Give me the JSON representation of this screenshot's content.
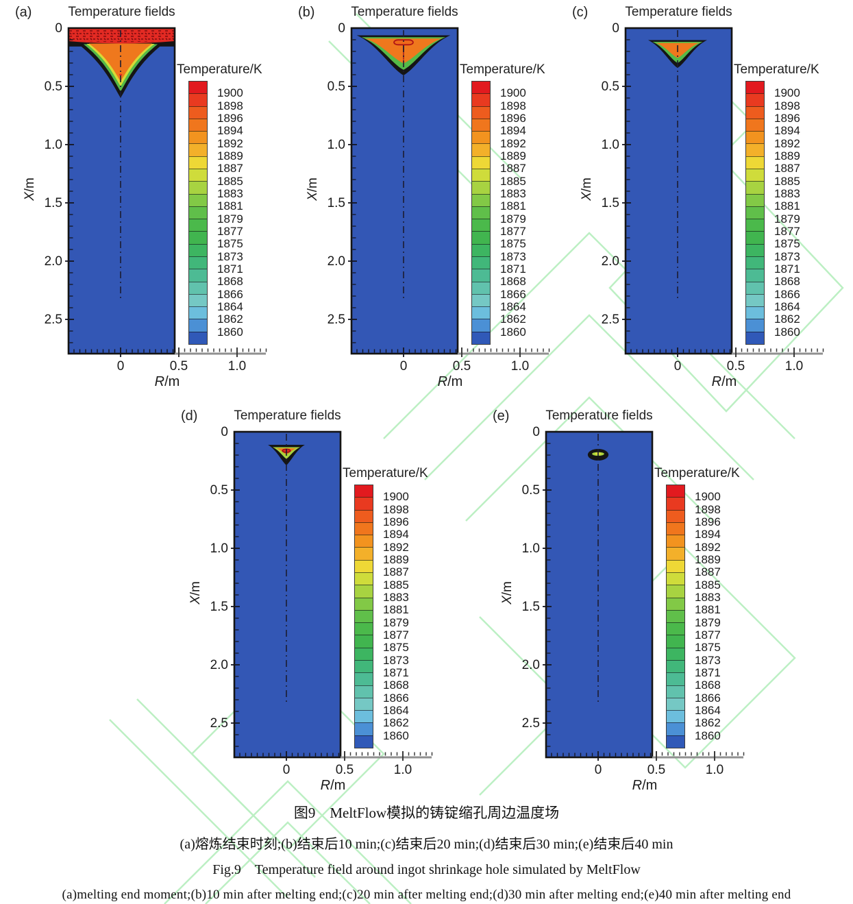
{
  "figure": {
    "caption_zh": "图9　MeltFlow模拟的铸锭缩孔周边温度场",
    "caption_list_zh": "(a)熔炼结束时刻;(b)结束后10 min;(c)结束后20 min;(d)结束后30 min;(e)结束后40 min",
    "caption_en": "Fig.9 Temperature field around ingot shrinkage hole simulated by MeltFlow",
    "caption_list_en": "(a)melting end moment;(b)10 min after melting end;(c)20 min after melting end;(d)30 min after melting end;(e)40 min after melting end"
  },
  "chart_data": {
    "type": "heatmap",
    "description": "Five axisymmetric temperature-field contour plots of an ingot at successive times after melting end; hot molten zone at top shrinks with time",
    "axes": {
      "x": {
        "var": "R",
        "unit": "/m",
        "ticks": [
          "0",
          "0.5",
          "1.0"
        ],
        "tick_values": [
          0,
          0.5,
          1.0
        ],
        "range": [
          -0.45,
          1.26
        ]
      },
      "y": {
        "var": "X",
        "unit": "/m",
        "ticks": [
          "0",
          "0.5",
          "1.0",
          "1.5",
          "2.0",
          "2.5"
        ],
        "tick_values": [
          0,
          0.5,
          1.0,
          1.5,
          2.0,
          2.5
        ],
        "range": [
          0,
          2.79
        ]
      }
    },
    "ingot_extent_m": {
      "r": [
        -0.45,
        0.465
      ],
      "x": [
        0,
        2.79
      ]
    },
    "colorbar": {
      "title": "Temperature/K",
      "levels": [
        "1900",
        "1898",
        "1896",
        "1894",
        "1892",
        "1889",
        "1887",
        "1885",
        "1883",
        "1881",
        "1879",
        "1877",
        "1875",
        "1873",
        "1871",
        "1868",
        "1866",
        "1864",
        "1862",
        "1860"
      ],
      "colors": [
        "#e21a1f",
        "#e93a20",
        "#ee5c1e",
        "#f0761d",
        "#f2931f",
        "#f3b02a",
        "#eed836",
        "#cfdc3b",
        "#a8d341",
        "#82c946",
        "#60bf4a",
        "#4bb94b",
        "#41b54f",
        "#3db561",
        "#41b77a",
        "#4dbb94",
        "#61c2ad",
        "#75c8c4",
        "#6cbedd",
        "#4b90d5",
        "#3059b8"
      ]
    },
    "style": {
      "ingot_fill": "#3357b5",
      "plot_border": "#141414",
      "centerline": "#1c1c30",
      "axis_line": "#909090",
      "tick_color": "#15151f",
      "watermark_color": "#90e69c"
    },
    "panels": [
      {
        "id": "a",
        "label": "(a)",
        "title": "Temperature fields",
        "time_zh": "熔炼结束时刻",
        "time_en": "melting end moment",
        "hot_zone": {
          "peak_level_K": 1900,
          "surface_band_depth_m": 0.15,
          "apex_depth_m": 0.58,
          "max_half_width_m": 0.36,
          "layers": [
            {
              "shape": "rectband",
              "color": "#151515",
              "bottom": 0.158
            },
            {
              "shape": "v",
              "color": "#151515",
              "top": 0.142,
              "hw": 0.357,
              "apex": 0.6,
              "curve": 0.8
            },
            {
              "shape": "v",
              "color": "#55ba48",
              "top": 0.138,
              "hw": 0.318,
              "apex": 0.545,
              "curve": 0.8
            },
            {
              "shape": "v",
              "color": "#d8da36",
              "top": 0.135,
              "hw": 0.292,
              "apex": 0.5,
              "curve": 0.8
            },
            {
              "shape": "v",
              "color": "#ef781d",
              "top": 0.132,
              "hw": 0.272,
              "apex": 0.458,
              "curve": 0.8
            },
            {
              "shape": "band",
              "color": "#e32a23",
              "bottom": 0.112,
              "dip": 0.02
            },
            {
              "shape": "band",
              "color": "pattern",
              "bottom": 0.105,
              "dip": 0.015
            },
            {
              "shape": "ellipse",
              "color": "#e32a23",
              "cy": 0.4,
              "rx": 0.013,
              "ry": 0.008
            }
          ]
        }
      },
      {
        "id": "b",
        "label": "(b)",
        "title": "Temperature fields",
        "time_zh": "结束后10 min",
        "time_en": "10 min after melting end",
        "hot_zone": {
          "peak_level_K": 1900,
          "surface_band_depth_m": 0.06,
          "apex_depth_m": 0.4,
          "max_half_width_m": 0.4,
          "layers": [
            {
              "shape": "v",
              "color": "#151515",
              "top": 0.062,
              "hw": 0.402,
              "apex": 0.405,
              "curve": 0.3
            },
            {
              "shape": "v",
              "color": "#55ba48",
              "top": 0.078,
              "hw": 0.36,
              "apex": 0.358,
              "curve": 0.3
            },
            {
              "shape": "v",
              "color": "#ef781d",
              "top": 0.09,
              "hw": 0.33,
              "apex": 0.302,
              "curve": 0.3
            },
            {
              "shape": "rrect",
              "color": "#ee6a1a",
              "stroke": "#b01515",
              "cy": 0.122,
              "hw": 0.082,
              "hh": 0.021
            },
            {
              "shape": "vline",
              "color": "#b8341c",
              "y1": 0.145,
              "y2": 0.272
            }
          ]
        }
      },
      {
        "id": "c",
        "label": "(c)",
        "title": "Temperature fields",
        "time_zh": "结束后20 min",
        "time_en": "20 min after melting end",
        "hot_zone": {
          "peak_level_K": 1898,
          "surface_band_depth_m": 0.1,
          "apex_depth_m": 0.34,
          "max_half_width_m": 0.25,
          "layers": [
            {
              "shape": "v",
              "color": "#151515",
              "top": 0.103,
              "hw": 0.253,
              "apex": 0.342,
              "curve": 0.32
            },
            {
              "shape": "v",
              "color": "#55ba48",
              "top": 0.118,
              "hw": 0.216,
              "apex": 0.3,
              "curve": 0.32
            },
            {
              "shape": "v",
              "color": "#ef781d",
              "top": 0.128,
              "hw": 0.186,
              "apex": 0.256,
              "curve": 0.32
            }
          ]
        }
      },
      {
        "id": "d",
        "label": "(d)",
        "title": "Temperature fields",
        "time_zh": "结束后30 min",
        "time_en": "30 min after melting end",
        "hot_zone": {
          "peak_level_K": 1898,
          "surface_band_depth_m": 0.11,
          "apex_depth_m": 0.29,
          "max_half_width_m": 0.16,
          "layers": [
            {
              "shape": "v",
              "color": "#151515",
              "top": 0.112,
              "hw": 0.158,
              "apex": 0.288,
              "curve": 0.42
            },
            {
              "shape": "v",
              "color": "#a9d33e",
              "top": 0.132,
              "hw": 0.118,
              "apex": 0.232,
              "curve": 0.42
            },
            {
              "shape": "v",
              "color": "#ef781d",
              "top": 0.142,
              "hw": 0.088,
              "apex": 0.196,
              "curve": 0.42
            },
            {
              "shape": "ellipse",
              "color": "#e32a23",
              "stroke": "#9c1016",
              "cy": 0.163,
              "rx": 0.034,
              "ry": 0.014
            }
          ]
        }
      },
      {
        "id": "e",
        "label": "(e)",
        "title": "Temperature fields",
        "time_zh": "结束后40 min",
        "time_en": "40 min after melting end",
        "hot_zone": {
          "peak_level_K": 1889,
          "surface_band_depth_m": 0.15,
          "apex_depth_m": 0.25,
          "max_half_width_m": 0.09,
          "layers": [
            {
              "shape": "ellipse",
              "color": "#151515",
              "cy": 0.197,
              "rx": 0.089,
              "ry": 0.05
            },
            {
              "shape": "ellipse",
              "color": "#a9d33e",
              "cy": 0.19,
              "rx": 0.052,
              "ry": 0.016
            },
            {
              "shape": "ellipse",
              "color": "#ddd93a",
              "cy": 0.188,
              "rx": 0.028,
              "ry": 0.009
            }
          ]
        }
      }
    ]
  }
}
